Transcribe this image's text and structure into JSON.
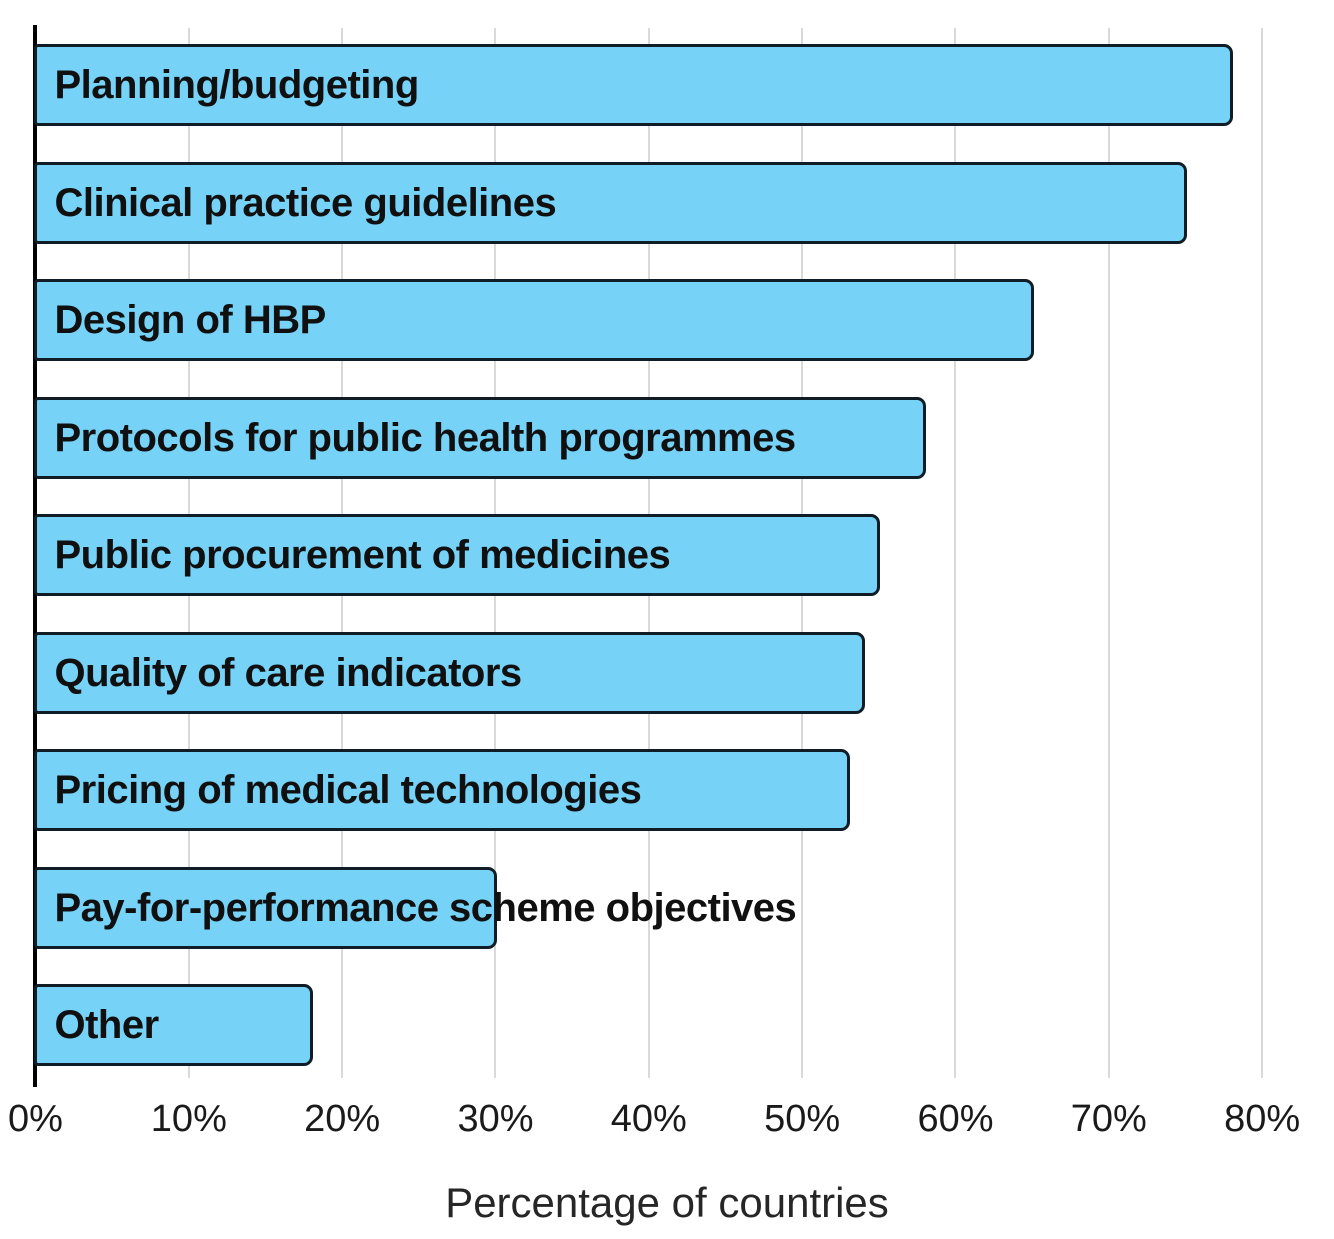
{
  "chart_data": {
    "type": "bar",
    "orientation": "horizontal",
    "title": "",
    "xlabel": "Percentage of countries",
    "ylabel": "",
    "unit": "%",
    "xlim": [
      0,
      80
    ],
    "xtick_step": 10,
    "grid": "vertical",
    "legend": "none",
    "categories": [
      "Planning/budgeting",
      "Clinical practice guidelines",
      "Design of HBP",
      "Protocols for public health programmes",
      "Public procurement of medicines",
      "Quality of care indicators",
      "Pricing of medical technologies",
      "Pay-for-performance scheme objectives",
      "Other"
    ],
    "values": [
      78,
      75,
      65,
      58,
      55,
      54,
      53,
      30,
      18
    ],
    "xticks": [
      "0%",
      "10%",
      "20%",
      "30%",
      "40%",
      "50%",
      "60%",
      "70%",
      "80%"
    ],
    "colors": {
      "bar_fill": "#76d3f7",
      "bar_border": "#101c26",
      "gridline": "#d9d9d9",
      "axis_line": "#000000",
      "bar_label_text": "#101010",
      "tick_text": "#1a1a1a",
      "axis_title_text": "#262626",
      "background": "#ffffff"
    }
  }
}
